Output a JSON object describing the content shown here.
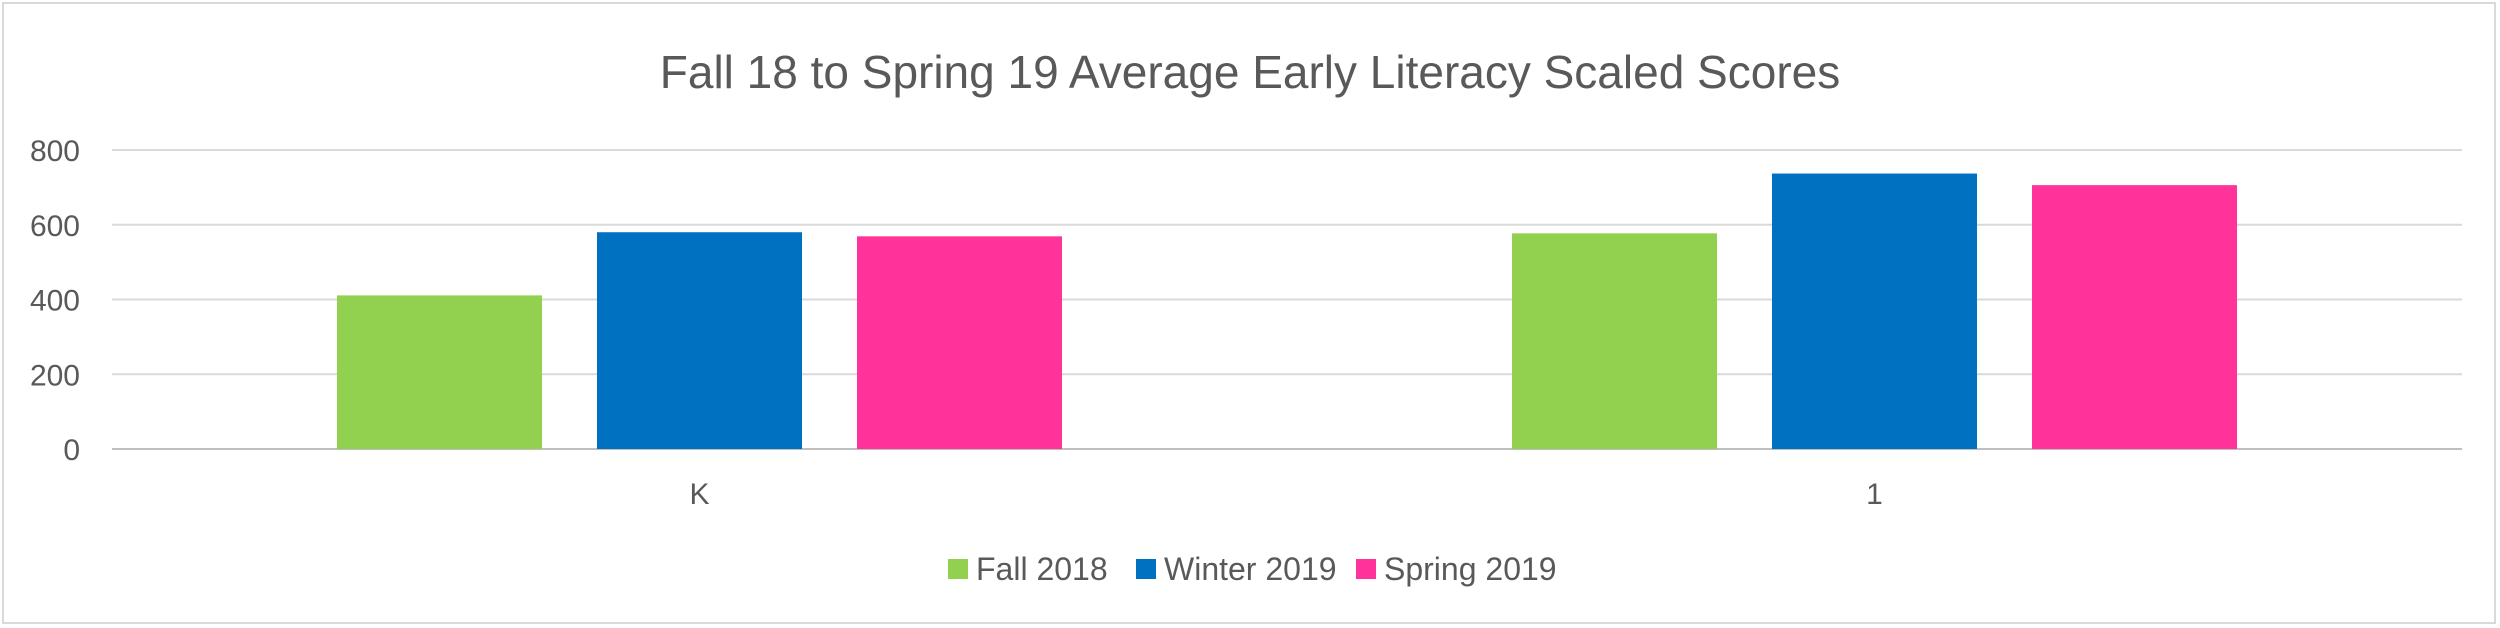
{
  "chart_data": {
    "type": "bar",
    "title": "Fall 18 to Spring 19 Average Early Literacy Scaled Scores",
    "categories": [
      "K",
      "1"
    ],
    "series": [
      {
        "name": "Fall 2018",
        "color": "#92d050",
        "values": [
          411,
          577
        ]
      },
      {
        "name": "Winter 2019",
        "color": "#0070c0",
        "values": [
          580,
          737
        ]
      },
      {
        "name": "Spring 2019",
        "color": "#ff3399",
        "values": [
          569,
          706
        ]
      }
    ],
    "ylim": [
      0,
      800
    ],
    "yticks": [
      "0",
      "200",
      "400",
      "600",
      "800"
    ],
    "xlabel": "",
    "ylabel": "",
    "grid": true,
    "legend": "bottom"
  }
}
